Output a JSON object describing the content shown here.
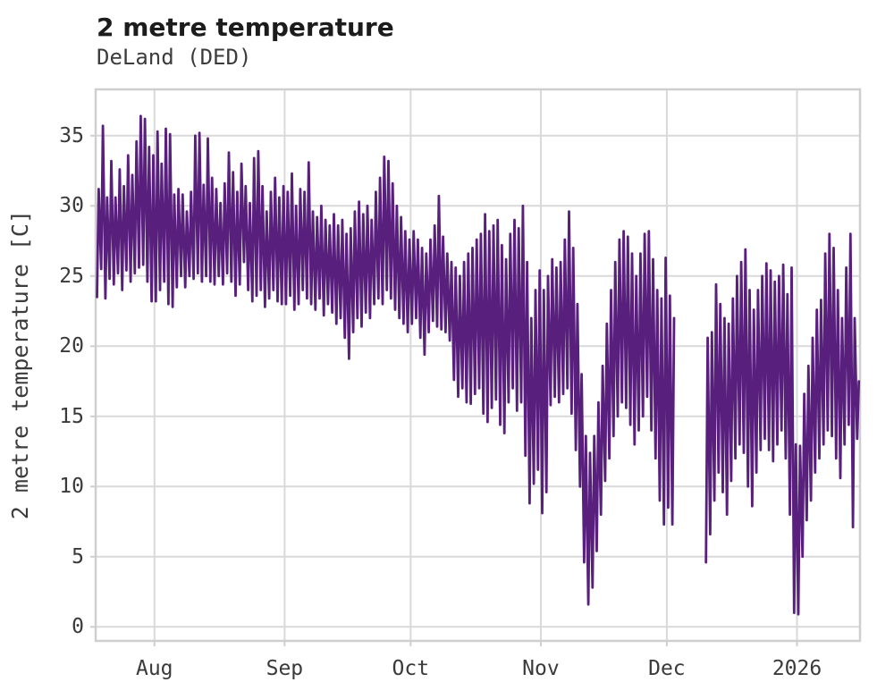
{
  "header": {
    "title": "2 metre temperature",
    "subtitle": "DeLand (DED)"
  },
  "chart_data": {
    "type": "line",
    "title": "2 metre temperature",
    "subtitle": "DeLand (DED)",
    "xlabel": "",
    "ylabel": "2 metre temperature [C]",
    "unit": "C",
    "grid": true,
    "legend": "none",
    "line_color": "#581f7d",
    "grid_color": "#d9d9d9",
    "spine_color": "#cfcfcf",
    "text_color": "#3a3a3a",
    "title_color": "#1c1c1c",
    "ylim": [
      -1,
      38.3
    ],
    "yticks": [
      0,
      5,
      10,
      15,
      20,
      25,
      30,
      35
    ],
    "x_total_days": 182,
    "xticks": [
      {
        "label": "Aug",
        "day": 14
      },
      {
        "label": "Sep",
        "day": 45
      },
      {
        "label": "Oct",
        "day": 75
      },
      {
        "label": "Nov",
        "day": 106
      },
      {
        "label": "Dec",
        "day": 136
      },
      {
        "label": "2026",
        "day": 167
      }
    ],
    "series_note": "Hourly 2 m temperature rendered as daily min/max zigzag; null = missing data gap (early Dec). Day 0 = left edge of plot (~2 weeks before Aug tick).",
    "daily_min_max_c": [
      [
        23.5,
        31.2
      ],
      [
        25.5,
        35.7
      ],
      [
        23.4,
        30.6
      ],
      [
        24.8,
        33.2
      ],
      [
        24.4,
        30.6
      ],
      [
        25.2,
        32.6
      ],
      [
        24.0,
        31.4
      ],
      [
        25.4,
        33.6
      ],
      [
        24.6,
        32.2
      ],
      [
        25.2,
        34.6
      ],
      [
        25.6,
        36.4
      ],
      [
        25.8,
        36.2
      ],
      [
        24.6,
        34.2
      ],
      [
        23.2,
        33.6
      ],
      [
        23.2,
        35.3
      ],
      [
        24.0,
        33.0
      ],
      [
        24.6,
        35.5
      ],
      [
        23.0,
        35.1
      ],
      [
        22.8,
        30.8
      ],
      [
        24.2,
        31.2
      ],
      [
        25.0,
        30.8
      ],
      [
        24.2,
        29.6
      ],
      [
        25.0,
        31.0
      ],
      [
        24.8,
        35.0
      ],
      [
        25.2,
        35.2
      ],
      [
        24.6,
        31.5
      ],
      [
        25.0,
        34.8
      ],
      [
        24.6,
        32.0
      ],
      [
        24.4,
        31.2
      ],
      [
        25.0,
        30.2
      ],
      [
        24.4,
        31.6
      ],
      [
        25.2,
        33.8
      ],
      [
        24.6,
        32.4
      ],
      [
        23.6,
        31.0
      ],
      [
        24.4,
        33.0
      ],
      [
        26.0,
        31.4
      ],
      [
        24.0,
        30.2
      ],
      [
        23.2,
        33.4
      ],
      [
        23.6,
        33.9
      ],
      [
        24.0,
        31.4
      ],
      [
        22.8,
        29.6
      ],
      [
        23.4,
        31.0
      ],
      [
        24.0,
        32.0
      ],
      [
        23.2,
        30.6
      ],
      [
        23.0,
        31.4
      ],
      [
        23.0,
        31.0
      ],
      [
        23.6,
        32.3
      ],
      [
        22.6,
        30.0
      ],
      [
        23.0,
        31.2
      ],
      [
        24.0,
        31.0
      ],
      [
        23.4,
        33.1
      ],
      [
        23.0,
        29.6
      ],
      [
        22.6,
        29.2
      ],
      [
        23.4,
        30.0
      ],
      [
        22.2,
        29.0
      ],
      [
        23.0,
        28.6
      ],
      [
        22.4,
        29.4
      ],
      [
        21.6,
        28.6
      ],
      [
        22.0,
        29.0
      ],
      [
        20.6,
        28.0
      ],
      [
        19.1,
        28.4
      ],
      [
        21.0,
        29.6
      ],
      [
        22.0,
        30.3
      ],
      [
        21.4,
        29.4
      ],
      [
        22.4,
        30.0
      ],
      [
        22.0,
        29.0
      ],
      [
        23.0,
        31.0
      ],
      [
        23.4,
        32.0
      ],
      [
        23.0,
        33.5
      ],
      [
        24.0,
        33.2
      ],
      [
        23.4,
        31.6
      ],
      [
        22.6,
        30.0
      ],
      [
        22.0,
        29.2
      ],
      [
        21.6,
        28.2
      ],
      [
        21.0,
        27.6
      ],
      [
        21.6,
        28.2
      ],
      [
        22.0,
        27.6
      ],
      [
        20.6,
        27.0
      ],
      [
        19.4,
        26.6
      ],
      [
        21.0,
        27.6
      ],
      [
        21.8,
        28.6
      ],
      [
        21.4,
        30.7
      ],
      [
        21.2,
        27.8
      ],
      [
        21.0,
        26.6
      ],
      [
        20.4,
        26.0
      ],
      [
        17.6,
        25.6
      ],
      [
        16.4,
        25.0
      ],
      [
        17.0,
        26.0
      ],
      [
        16.0,
        26.6
      ],
      [
        15.9,
        27.0
      ],
      [
        16.6,
        27.6
      ],
      [
        17.0,
        28.0
      ],
      [
        15.2,
        29.4
      ],
      [
        14.6,
        28.2
      ],
      [
        15.6,
        28.6
      ],
      [
        16.2,
        29.0
      ],
      [
        14.4,
        27.2
      ],
      [
        13.8,
        26.2
      ],
      [
        16.0,
        28.0
      ],
      [
        17.0,
        29.0
      ],
      [
        15.4,
        28.4
      ],
      [
        16.0,
        30.0
      ],
      [
        12.2,
        26.0
      ],
      [
        8.8,
        22.0
      ],
      [
        10.2,
        24.0
      ],
      [
        11.2,
        25.4
      ],
      [
        8.1,
        24.0
      ],
      [
        9.6,
        25.0
      ],
      [
        15.8,
        26.2
      ],
      [
        16.4,
        25.6
      ],
      [
        16.0,
        26.0
      ],
      [
        16.6,
        27.6
      ],
      [
        17.0,
        29.6
      ],
      [
        15.2,
        27.0
      ],
      [
        12.6,
        23.0
      ],
      [
        10.0,
        18.0
      ],
      [
        4.6,
        13.6
      ],
      [
        1.6,
        12.4
      ],
      [
        2.8,
        13.6
      ],
      [
        5.4,
        16.0
      ],
      [
        8.0,
        18.6
      ],
      [
        10.4,
        21.6
      ],
      [
        12.0,
        24.0
      ],
      [
        13.6,
        26.0
      ],
      [
        15.0,
        27.6
      ],
      [
        16.0,
        28.2
      ],
      [
        15.6,
        27.8
      ],
      [
        14.4,
        26.6
      ],
      [
        13.0,
        25.0
      ],
      [
        14.0,
        26.6
      ],
      [
        15.0,
        28.0
      ],
      [
        16.4,
        28.2
      ],
      [
        14.0,
        26.2
      ],
      [
        12.0,
        24.0
      ],
      [
        9.0,
        23.4
      ],
      [
        7.3,
        26.3
      ],
      [
        8.5,
        23.6
      ],
      [
        7.3,
        22.0
      ],
      null,
      null,
      null,
      null,
      null,
      null,
      null,
      [
        4.6,
        20.6
      ],
      [
        6.6,
        21.0
      ],
      [
        9.0,
        24.4
      ],
      [
        11.0,
        23.0
      ],
      [
        9.6,
        22.0
      ],
      [
        8.0,
        21.6
      ],
      [
        10.4,
        23.4
      ],
      [
        12.0,
        25.0
      ],
      [
        13.0,
        26.0
      ],
      [
        12.4,
        26.9
      ],
      [
        10.0,
        24.0
      ],
      [
        8.6,
        22.6
      ],
      [
        11.0,
        24.0
      ],
      [
        12.6,
        25.0
      ],
      [
        13.4,
        25.9
      ],
      [
        12.6,
        25.4
      ],
      [
        11.8,
        24.6
      ],
      [
        13.0,
        25.0
      ],
      [
        14.0,
        25.8
      ],
      [
        12.0,
        23.7
      ],
      [
        8.0,
        25.6
      ],
      [
        1.0,
        13.0
      ],
      [
        0.9,
        12.9
      ],
      [
        5.0,
        16.6
      ],
      [
        7.6,
        18.6
      ],
      [
        9.0,
        20.6
      ],
      [
        11.0,
        22.6
      ],
      [
        12.0,
        23.3
      ],
      [
        13.0,
        26.6
      ],
      [
        14.0,
        28.0
      ],
      [
        13.6,
        27.0
      ],
      [
        12.0,
        24.0
      ],
      [
        10.6,
        22.0
      ],
      [
        13.0,
        25.6
      ],
      [
        14.4,
        28.0
      ],
      [
        7.1,
        22.0
      ],
      [
        13.4,
        17.5
      ]
    ]
  }
}
